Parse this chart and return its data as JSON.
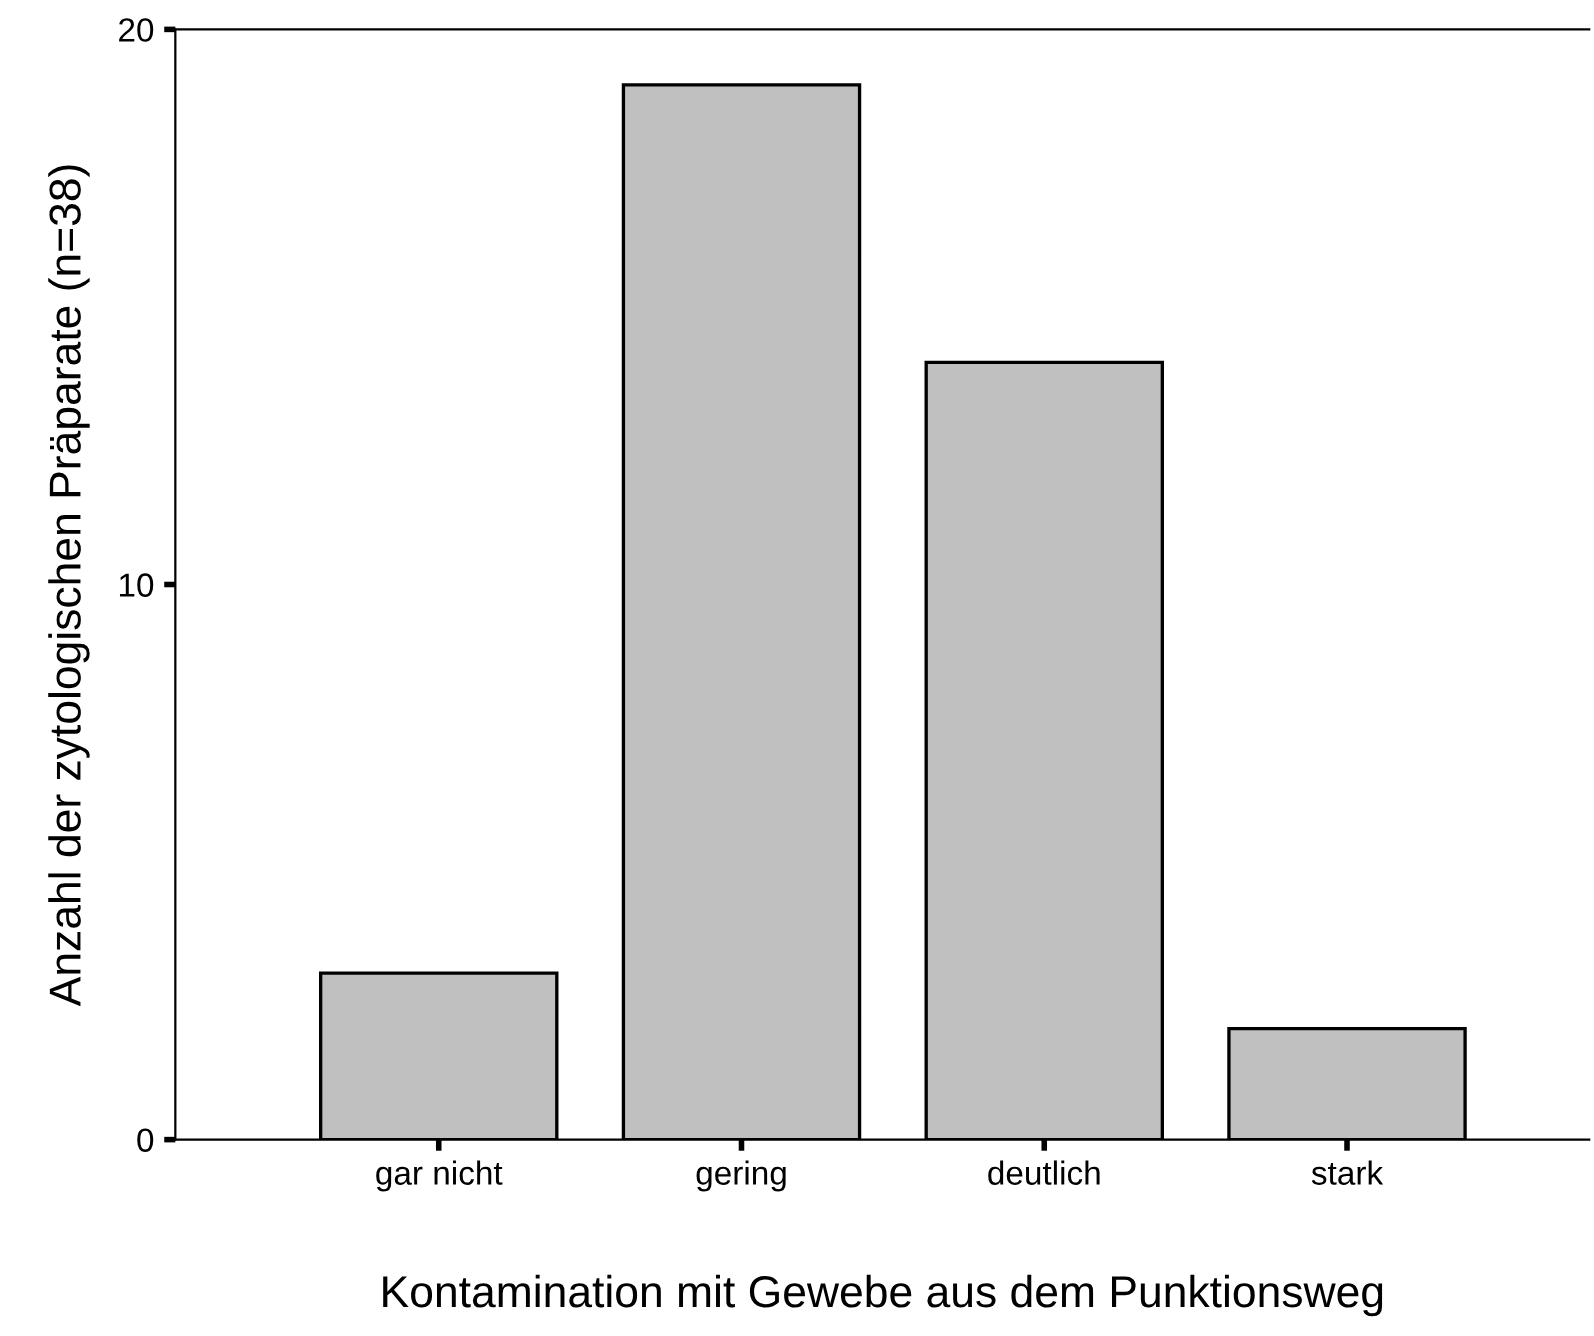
{
  "chart_data": {
    "type": "bar",
    "xlabel": "Kontamination mit Gewebe aus dem Punktionsweg",
    "ylabel": "Anzahl der zytologischen Präparate (n=38)",
    "categories": [
      "gar nicht",
      "gering",
      "deutlich",
      "stark"
    ],
    "values": [
      3,
      19,
      14,
      2
    ],
    "color": "#c0c0c0",
    "ylim": [
      0,
      20
    ],
    "yticks": [
      0,
      10,
      20
    ],
    "grid": false,
    "legend": false
  }
}
